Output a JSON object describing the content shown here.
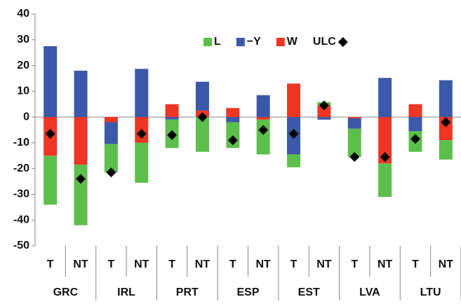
{
  "chart_data": {
    "type": "bar",
    "stacked": true,
    "groups": [
      "GRC",
      "IRL",
      "PRT",
      "ESP",
      "EST",
      "LVA",
      "LTU"
    ],
    "categories": [
      "T",
      "NT",
      "T",
      "NT",
      "T",
      "NT",
      "T",
      "NT",
      "T",
      "NT",
      "T",
      "NT",
      "T",
      "NT"
    ],
    "series": [
      {
        "name": "L",
        "color": "#5cbf4b",
        "values": [
          -19,
          -23.5,
          -11,
          -15.5,
          -11,
          -13.5,
          -10,
          -13.5,
          -5,
          1.3,
          -11,
          -13,
          -8,
          -7.5
        ]
      },
      {
        "name": "−Y",
        "color": "#3c58a8",
        "values": [
          27.5,
          18,
          -8.5,
          18.7,
          -1,
          11.2,
          -2,
          8.5,
          -14.5,
          -1,
          -4,
          15.2,
          -5.5,
          14.3
        ]
      },
      {
        "name": "W",
        "color": "#ef3524",
        "values": [
          -15,
          -18.5,
          -2,
          -10,
          5,
          2.5,
          3.5,
          -1,
          13,
          4.5,
          -0.5,
          -18,
          5,
          -9
        ]
      },
      {
        "name": "ULC",
        "type": "scatter",
        "color": "#000000",
        "values": [
          -6.5,
          -24,
          -21.5,
          -6.5,
          -7,
          0,
          -9,
          -5,
          -6.5,
          4.5,
          -15.5,
          -15.5,
          -8.5,
          -2
        ]
      }
    ],
    "ylim": [
      -50,
      40
    ],
    "yticks": [
      -50,
      -40,
      -30,
      -20,
      -10,
      0,
      10,
      20,
      30,
      40
    ],
    "grid": false
  }
}
